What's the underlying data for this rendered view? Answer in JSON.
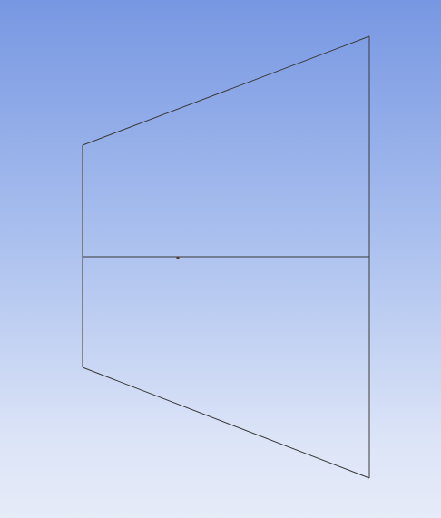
{
  "viewport": {
    "background_top": "#7797e2",
    "background_bottom": "#e6ebf8",
    "line_color": "#3a3a3a",
    "point_color": "#5a3a2a"
  },
  "geometry": {
    "shape": "trapezoid outline",
    "has_midline": true,
    "has_point_marker": true
  }
}
